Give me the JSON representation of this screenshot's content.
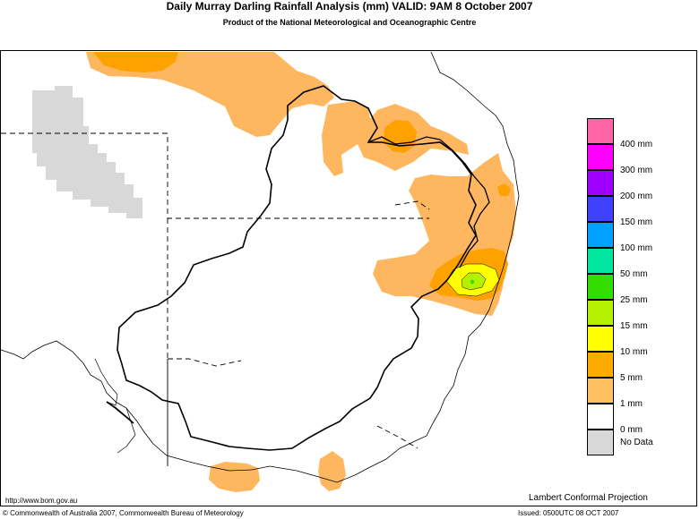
{
  "header": {
    "title": "Daily Murray Darling Rainfall Analysis (mm)  VALID: 9AM  8 October 2007",
    "subtitle": "Product of the National Meteorological and Oceanographic Centre"
  },
  "legend": {
    "items": [
      {
        "label": "400 mm",
        "color": "#ff66a8"
      },
      {
        "label": "300 mm",
        "color": "#ff00ff"
      },
      {
        "label": "200 mm",
        "color": "#a000ff"
      },
      {
        "label": "150 mm",
        "color": "#4040ff"
      },
      {
        "label": "100 mm",
        "color": "#00a0ff"
      },
      {
        "label": "50 mm",
        "color": "#00e6a0"
      },
      {
        "label": "25 mm",
        "color": "#33dd00"
      },
      {
        "label": "15 mm",
        "color": "#b4f000"
      },
      {
        "label": "10 mm",
        "color": "#ffff00"
      },
      {
        "label": "5 mm",
        "color": "#ffaa00"
      },
      {
        "label": "1 mm",
        "color": "#ffc060"
      },
      {
        "label": "0 mm",
        "color": "#ffffff"
      }
    ],
    "no_data": {
      "label": "No Data",
      "color": "#d8d8d8"
    }
  },
  "footer": {
    "url": "http://www.bom.gov.au",
    "projection": "Lambert Conformal Projection",
    "copyright": "© Commonwealth of Australia 2007, Commonwealth Bureau of Meteorology",
    "issued": "Issued: 0500UTC 08 OCT 2007"
  },
  "colors": {
    "light_rain": "#ffb75f",
    "moderate_rain": "#ffa200",
    "heavy_10": "#ffff00",
    "heavy_15": "#b4f000",
    "heavy_25": "#33dd00",
    "no_data": "#d8d8d8"
  }
}
